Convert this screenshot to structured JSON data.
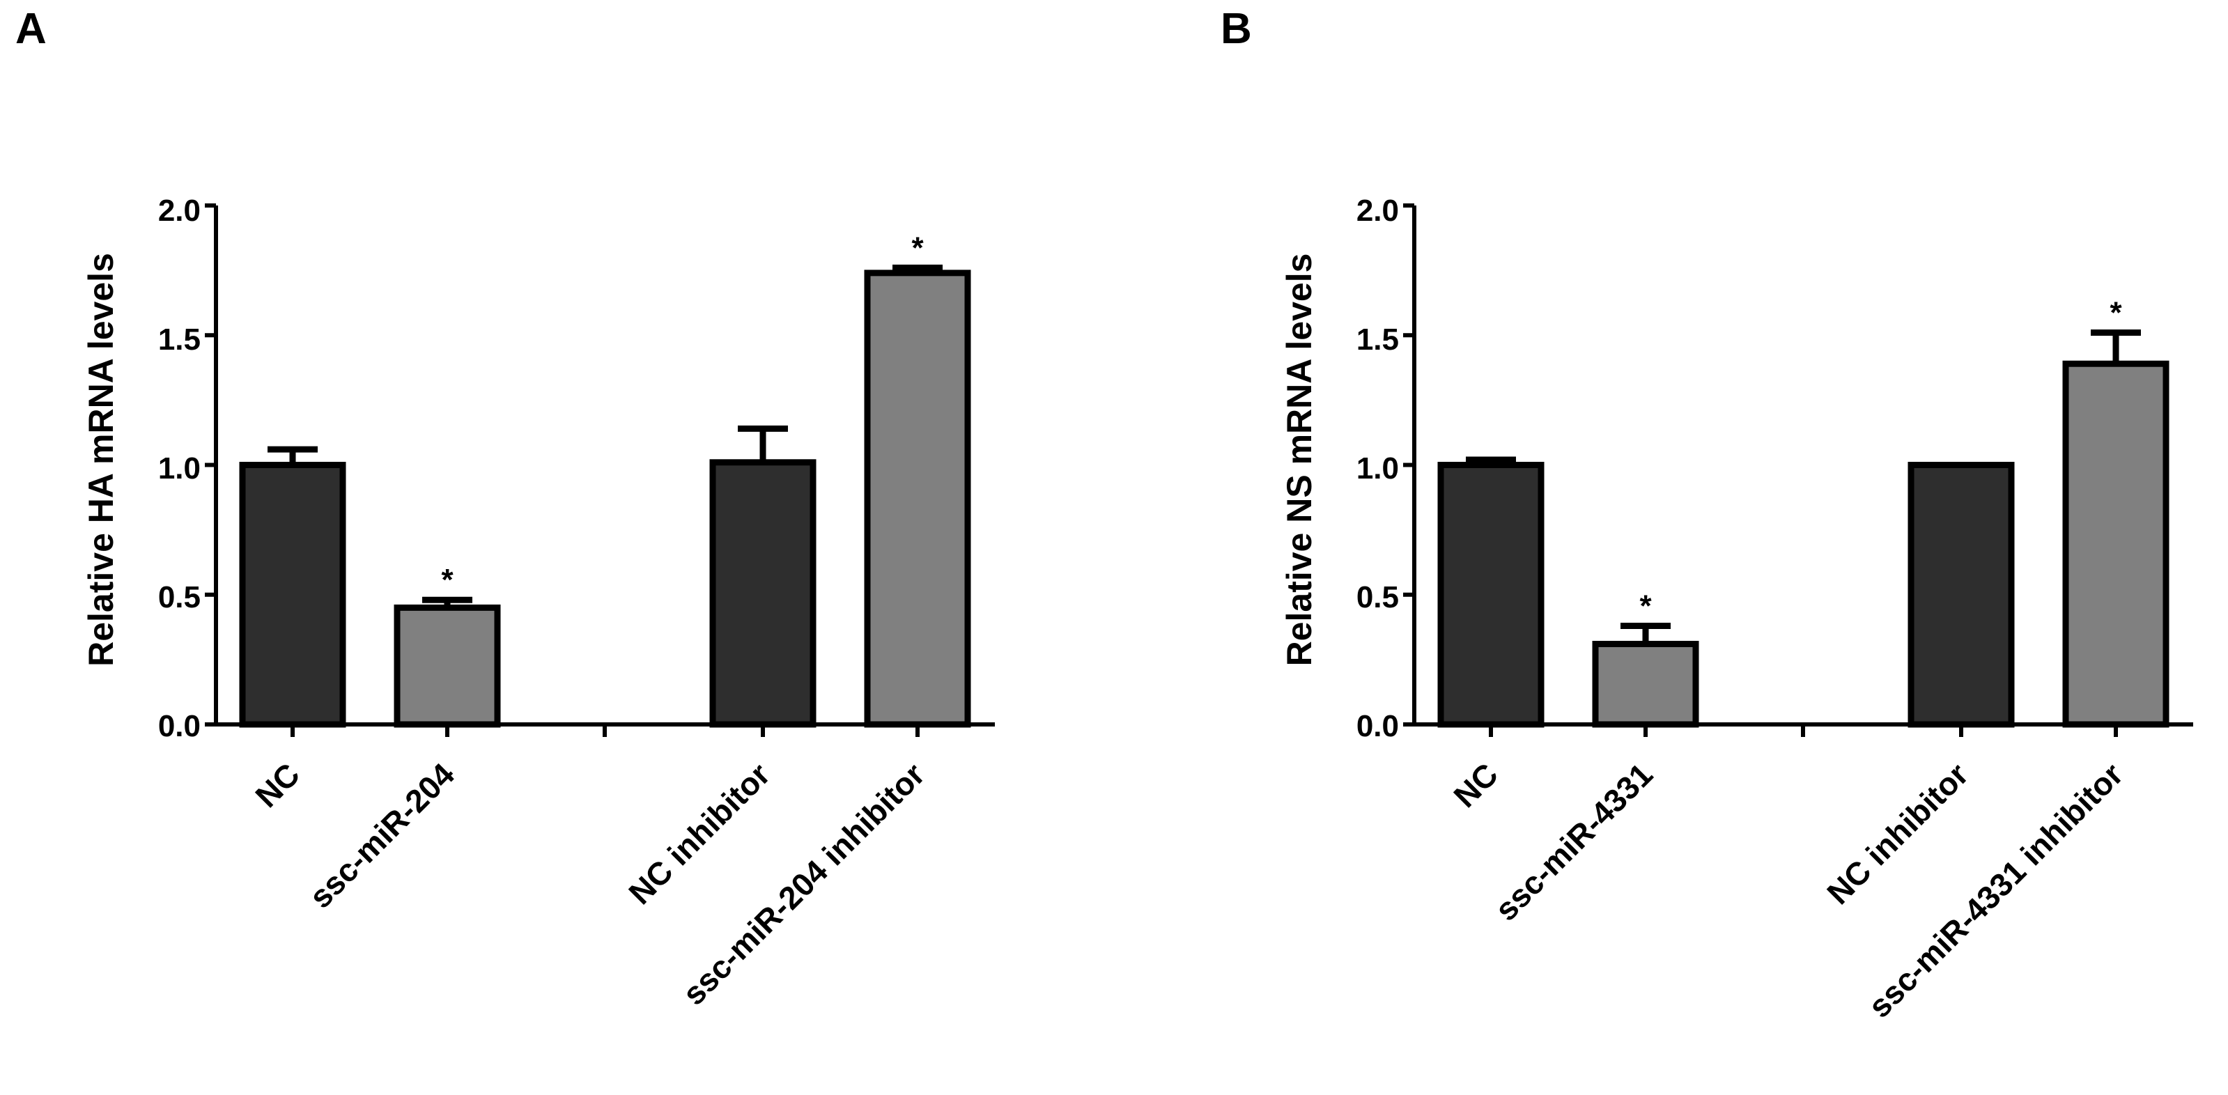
{
  "chart_data": [
    {
      "type": "bar",
      "panel_label": "A",
      "ylabel": "Relative HA mRNA levels",
      "xlabel": "",
      "ylim": [
        0,
        2.0
      ],
      "yticks": [
        "0.0",
        "0.5",
        "1.0",
        "1.5",
        "2.0"
      ],
      "categories": [
        "NC",
        "ssc-miR-204",
        "NC inhibitor",
        "ssc-miR-204 inhibitor"
      ],
      "values": [
        1.0,
        0.45,
        1.01,
        1.74
      ],
      "errors": [
        0.06,
        0.03,
        0.13,
        0.02
      ],
      "significance": [
        "",
        "*",
        "",
        "*"
      ],
      "colors": [
        "#2e2e2e",
        "#808080",
        "#2e2e2e",
        "#808080"
      ]
    },
    {
      "type": "bar",
      "panel_label": "B",
      "ylabel": "Relative NS mRNA levels",
      "xlabel": "",
      "ylim": [
        0,
        2.0
      ],
      "yticks": [
        "0.0",
        "0.5",
        "1.0",
        "1.5",
        "2.0"
      ],
      "categories": [
        "NC",
        "ssc-miR-4331",
        "NC inhibitor",
        "ssc-miR-4331 inhibitor"
      ],
      "values": [
        1.0,
        0.31,
        1.0,
        1.39
      ],
      "errors": [
        0.02,
        0.07,
        0.0,
        0.12
      ],
      "significance": [
        "",
        "*",
        "",
        "*"
      ],
      "colors": [
        "#2e2e2e",
        "#808080",
        "#2e2e2e",
        "#808080"
      ]
    }
  ]
}
